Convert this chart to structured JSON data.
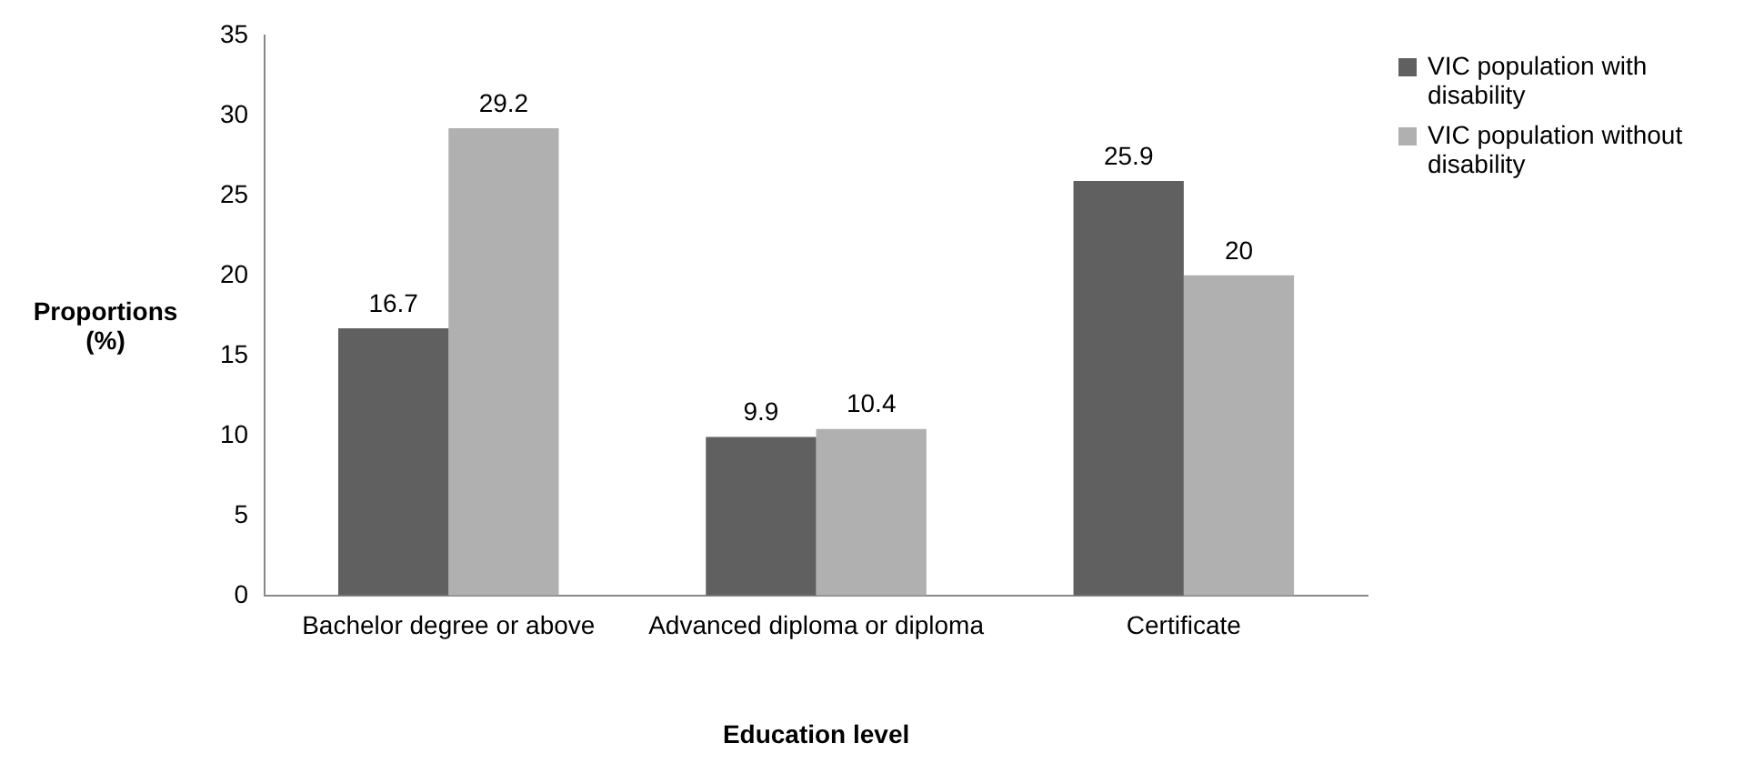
{
  "chart_data": {
    "type": "bar",
    "xlabel": "Education level",
    "ylabel": "Proportions (%)",
    "categories": [
      "Bachelor degree or above",
      "Advanced diploma or diploma",
      "Certificate"
    ],
    "series": [
      {
        "name": "VIC population with disability",
        "color": "#606060",
        "values": [
          16.7,
          9.9,
          25.9
        ]
      },
      {
        "name": "VIC population without disability",
        "color": "#b0b0b0",
        "values": [
          29.2,
          10.4,
          20
        ]
      }
    ],
    "ylim": [
      0,
      35
    ],
    "yticks": [
      0,
      5,
      10,
      15,
      20,
      25,
      30,
      35
    ],
    "grid": false,
    "legend": "top right",
    "data_labels": true
  }
}
